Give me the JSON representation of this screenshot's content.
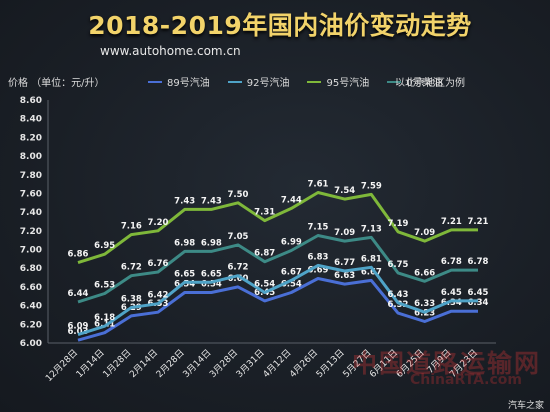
{
  "header": {
    "title": "2018-2019年国内油价变动走势",
    "site": "www.autohome.com.cn",
    "unit_label": "价格 （单位：元/升）",
    "region_note": "以北京地区为例"
  },
  "watermark": {
    "main": "中国道路运输网",
    "sub": "ChinaRTA.com",
    "corner": "汽车之家"
  },
  "chart_data": {
    "type": "line",
    "title": "2018-2019年国内油价变动走势",
    "xlabel": "",
    "ylabel": "价格 （单位：元/升）",
    "ylim": [
      6.0,
      8.6
    ],
    "yticks": [
      "6.00",
      "6.20",
      "6.40",
      "6.60",
      "6.80",
      "7.00",
      "7.20",
      "7.40",
      "7.60",
      "7.80",
      "8.00",
      "8.20",
      "8.40",
      "8.60"
    ],
    "grid": false,
    "legend": "top",
    "categories": [
      "12月28日",
      "1月14日",
      "1月28日",
      "2月14日",
      "2月28日",
      "3月14日",
      "3月28日",
      "3月31日",
      "4月12日",
      "4月26日",
      "5月13日",
      "5月27日",
      "6月11日",
      "6月25日",
      "7月9日",
      "7月23日"
    ],
    "series": [
      {
        "name": "89号汽油",
        "color": "#4a6fd6",
        "values": [
          6.03,
          6.11,
          6.29,
          6.33,
          6.54,
          6.54,
          6.6,
          6.45,
          6.54,
          6.69,
          6.63,
          6.67,
          6.32,
          6.23,
          6.34,
          6.34
        ],
        "labels": [
          "6.03",
          "6.11",
          "6.29",
          "6.33",
          "6.54",
          "6.54",
          "6.60",
          "6.45",
          "6.54",
          "6.69",
          "6.63",
          "6.67",
          "6.32",
          "6.23",
          "6.34",
          "6.34"
        ]
      },
      {
        "name": "92号汽油",
        "color": "#4fa3c7",
        "values": [
          6.09,
          6.18,
          6.38,
          6.42,
          6.65,
          6.65,
          6.72,
          6.54,
          6.67,
          6.83,
          6.77,
          6.81,
          6.43,
          6.33,
          6.45,
          6.45
        ],
        "labels": [
          "6.09",
          "6.18",
          "6.38",
          "6.42",
          "6.65",
          "6.65",
          "6.72",
          "6.54",
          "6.67",
          "6.83",
          "6.77",
          "6.81",
          "6.43",
          "6.33",
          "6.45",
          "6.45"
        ]
      },
      {
        "name": "95号汽油",
        "color": "#7fb83a",
        "values": [
          6.86,
          6.95,
          7.16,
          7.2,
          7.43,
          7.43,
          7.5,
          7.31,
          7.44,
          7.61,
          7.54,
          7.59,
          7.19,
          7.09,
          7.21,
          7.21
        ],
        "labels": [
          "6.86",
          "6.95",
          "7.16",
          "7.20",
          "7.43",
          "7.43",
          "7.50",
          "7.31",
          "7.44",
          "7.61",
          "7.54",
          "7.59",
          "7.19",
          "7.09",
          "7.21",
          "7.21"
        ]
      },
      {
        "name": "0号柴油",
        "color": "#3d8a86",
        "values": [
          6.44,
          6.53,
          6.72,
          6.76,
          6.98,
          6.98,
          7.05,
          6.87,
          6.99,
          7.15,
          7.09,
          7.13,
          6.75,
          6.66,
          6.78,
          6.78
        ],
        "labels": [
          "6.44",
          "6.53",
          "6.72",
          "6.76",
          "6.98",
          "6.98",
          "7.05",
          "6.87",
          "6.99",
          "7.15",
          "7.09",
          "7.13",
          "6.75",
          "6.66",
          "6.78",
          "6.78"
        ]
      }
    ]
  }
}
